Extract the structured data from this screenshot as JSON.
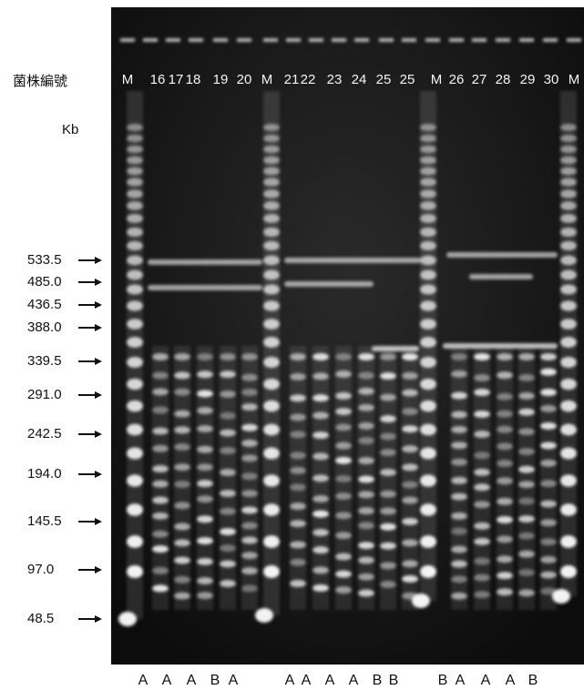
{
  "header": {
    "strain_label": "菌株編號",
    "unit_label": "Kb"
  },
  "lanes": [
    "M",
    "16",
    "17",
    "18",
    "19",
    "20",
    "M",
    "21",
    "22",
    "23",
    "24",
    "25",
    "25",
    "M",
    "26",
    "27",
    "28",
    "29",
    "30",
    "M"
  ],
  "size_markers": [
    "533.5",
    "485.0",
    "436.5",
    "388.0",
    "339.5",
    "291.0",
    "242.5",
    "194.0",
    "145.5",
    "97.0",
    "48.5"
  ],
  "patterns": [
    "A",
    "A",
    "A",
    "B",
    "A",
    "A",
    "A",
    "A",
    "A",
    "B",
    "B",
    "B",
    "A",
    "A",
    "A",
    "B"
  ]
}
